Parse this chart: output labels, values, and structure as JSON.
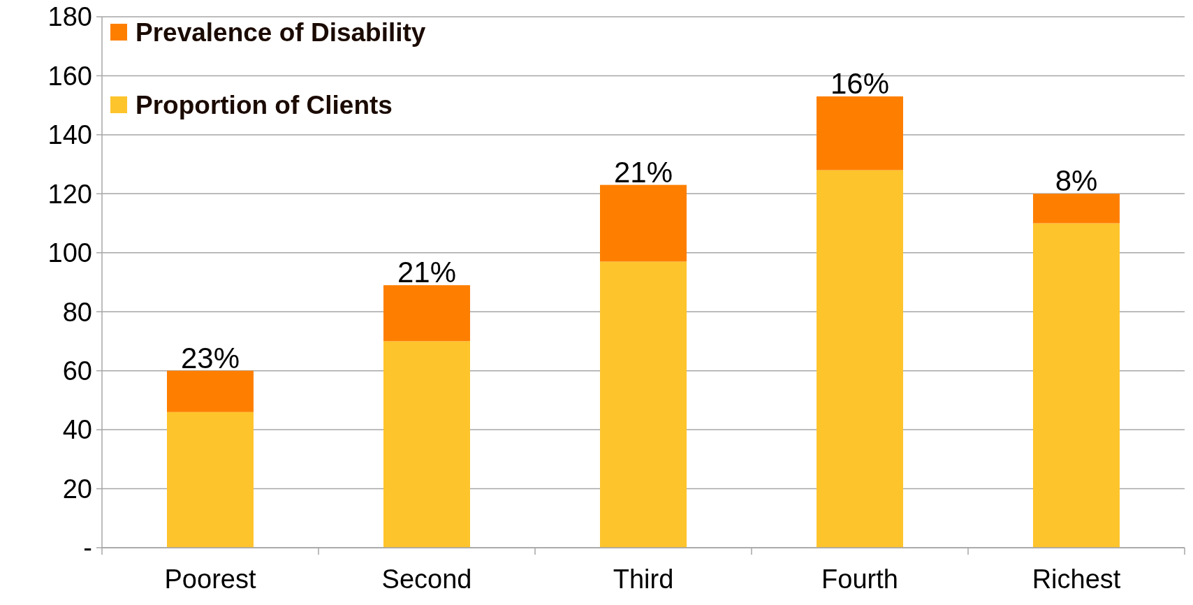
{
  "chart_data": {
    "type": "bar",
    "stacked": true,
    "categories": [
      "Poorest",
      "Second",
      "Third",
      "Fourth",
      "Richest"
    ],
    "series": [
      {
        "name": "Proportion of Clients",
        "color": "#fec42c",
        "values": [
          46,
          70,
          97,
          128,
          110
        ]
      },
      {
        "name": "Prevalence of Disability",
        "color": "#fe7f00",
        "values": [
          14,
          19,
          26,
          25,
          10
        ]
      }
    ],
    "annotations": [
      {
        "text": "23%",
        "x": "Poorest",
        "y": 60
      },
      {
        "text": "21%",
        "x": "Second",
        "y": 89
      },
      {
        "text": "21%",
        "x": "Third",
        "y": 123
      },
      {
        "text": "16%",
        "x": "Fourth",
        "y": 153
      },
      {
        "text": "8%",
        "x": "Richest",
        "y": 120
      }
    ],
    "ylim": [
      0,
      180
    ],
    "yticks": [
      {
        "value": 0,
        "label": "-"
      },
      20,
      40,
      60,
      80,
      100,
      120,
      140,
      160,
      180
    ],
    "grid": "y",
    "legend": "top left"
  }
}
